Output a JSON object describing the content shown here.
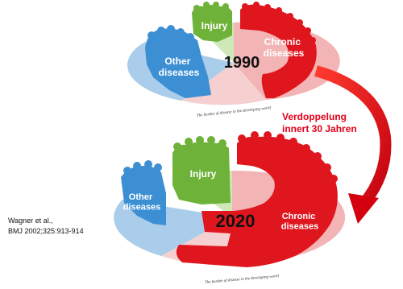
{
  "figure_1990": {
    "year": "1990",
    "caption": "The burden of disease in the developing world",
    "segments": {
      "injury": "Injury",
      "chronic": "Chronic diseases",
      "other": "Other diseases"
    }
  },
  "figure_2020": {
    "year": "2020",
    "caption": "The burden of disease in the developing world",
    "segments": {
      "injury": "Injury",
      "chronic": "Chronic diseases",
      "other": "Other diseases"
    }
  },
  "annotation": {
    "line1": "Verdoppelung",
    "line2": "innert 30 Jahren"
  },
  "citation": {
    "line1": "Wagner et al.,",
    "line2": "BMJ 2002;325:913-914"
  },
  "colors": {
    "injury": "#6fb23a",
    "chronic": "#e0161f",
    "other": "#3d8fd4",
    "arrow": "#e2001a"
  }
}
